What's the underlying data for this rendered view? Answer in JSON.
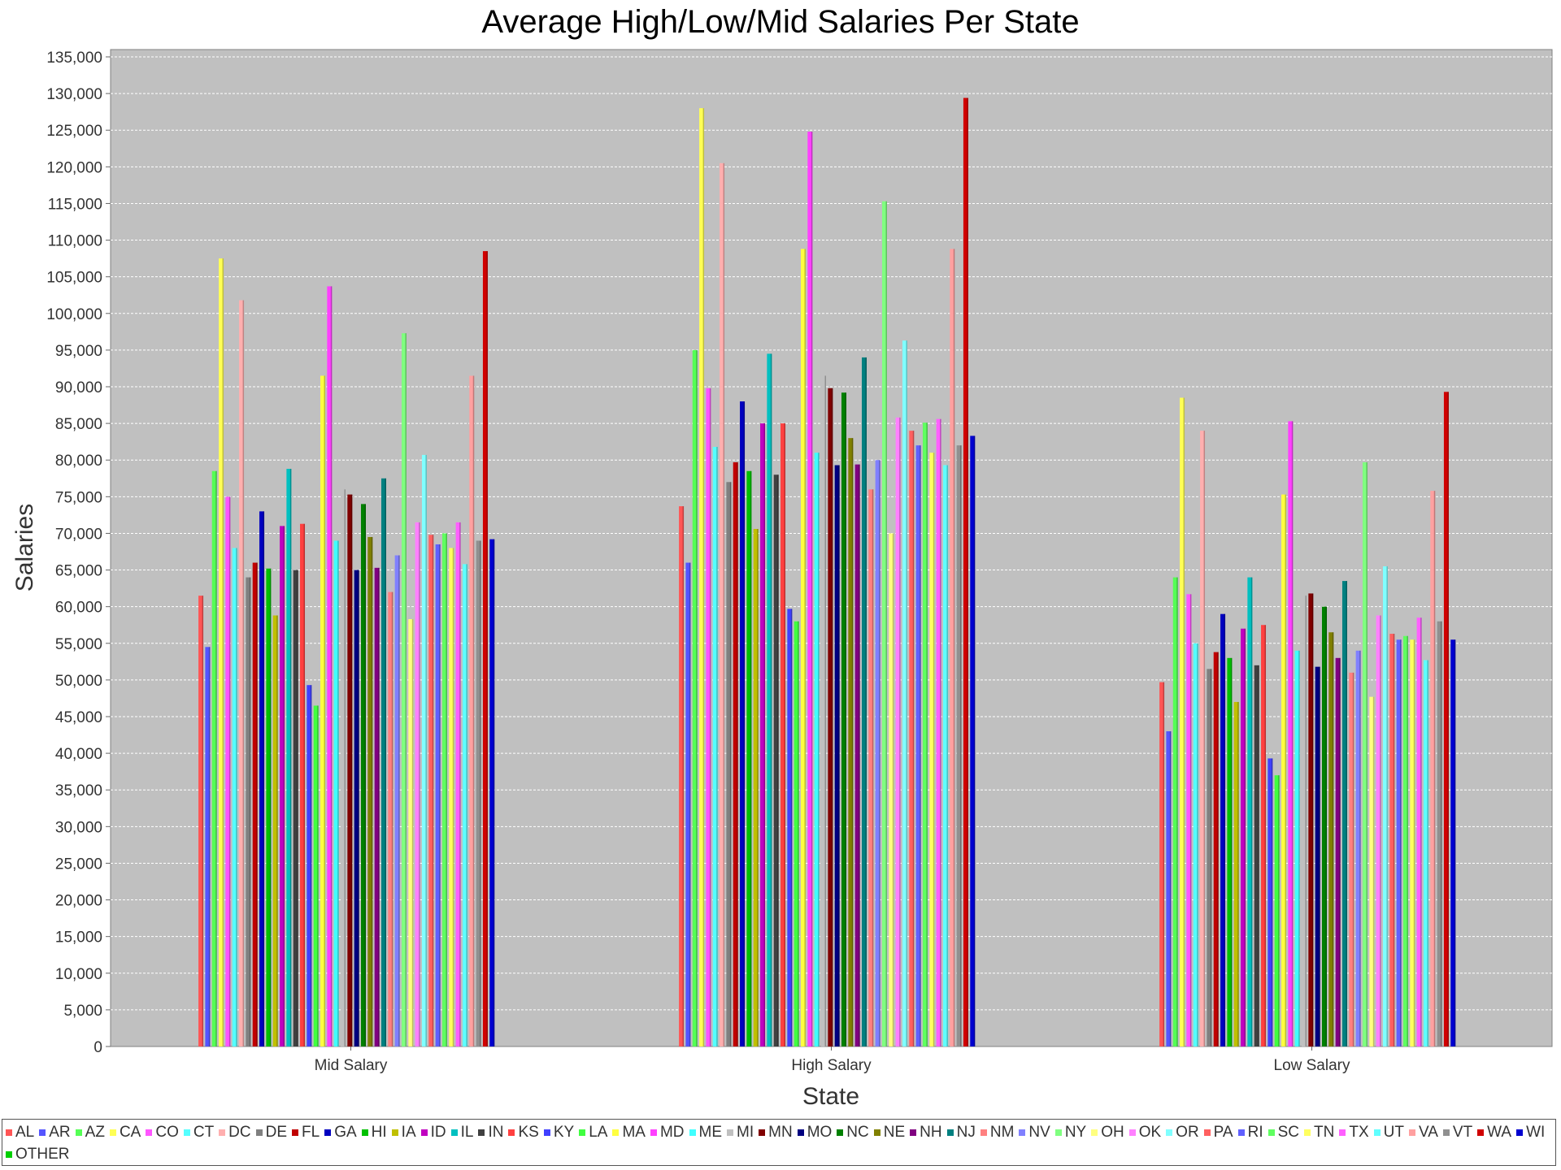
{
  "chart_data": {
    "type": "bar",
    "title": "Average High/Low/Mid Salaries Per State",
    "xlabel": "State",
    "ylabel": "Salaries",
    "ylim": [
      0,
      135000
    ],
    "y_tick_step": 5000,
    "grid": true,
    "legend_position": "bottom",
    "categories": [
      "Mid Salary",
      "High Salary",
      "Low Salary"
    ],
    "series": [
      {
        "name": "AL",
        "color": "#ff5555",
        "values": [
          61500,
          73700,
          49700
        ]
      },
      {
        "name": "AR",
        "color": "#5555ff",
        "values": [
          54500,
          66000,
          43000
        ]
      },
      {
        "name": "AZ",
        "color": "#55ff55",
        "values": [
          78500,
          95000,
          64000
        ]
      },
      {
        "name": "CA",
        "color": "#ffff55",
        "values": [
          107500,
          128000,
          88500
        ]
      },
      {
        "name": "CO",
        "color": "#ff55ff",
        "values": [
          75000,
          89800,
          61700
        ]
      },
      {
        "name": "CT",
        "color": "#55ffff",
        "values": [
          68000,
          81800,
          55000
        ]
      },
      {
        "name": "DC",
        "color": "#ffafaf",
        "values": [
          101800,
          120500,
          84000
        ]
      },
      {
        "name": "DE",
        "color": "#808080",
        "values": [
          64000,
          77000,
          51500
        ]
      },
      {
        "name": "FL",
        "color": "#c00000",
        "values": [
          66000,
          79700,
          53800
        ]
      },
      {
        "name": "GA",
        "color": "#0000c0",
        "values": [
          73000,
          88000,
          59000
        ]
      },
      {
        "name": "HI",
        "color": "#00c000",
        "values": [
          65200,
          78500,
          53000
        ]
      },
      {
        "name": "IA",
        "color": "#c0c000",
        "values": [
          58800,
          70600,
          47000
        ]
      },
      {
        "name": "ID",
        "color": "#c000c0",
        "values": [
          71000,
          85000,
          57000
        ]
      },
      {
        "name": "IL",
        "color": "#00c0c0",
        "values": [
          78800,
          94500,
          64000
        ]
      },
      {
        "name": "IN",
        "color": "#404040",
        "values": [
          65000,
          78000,
          52000
        ]
      },
      {
        "name": "KS",
        "color": "#ff4040",
        "values": [
          71300,
          85000,
          57500
        ]
      },
      {
        "name": "KY",
        "color": "#4040ff",
        "values": [
          49300,
          59700,
          39300
        ]
      },
      {
        "name": "LA",
        "color": "#40ff40",
        "values": [
          46500,
          58000,
          37000
        ]
      },
      {
        "name": "MA",
        "color": "#ffff40",
        "values": [
          91500,
          108800,
          75300
        ]
      },
      {
        "name": "MD",
        "color": "#ff40ff",
        "values": [
          103700,
          124800,
          85300
        ]
      },
      {
        "name": "ME",
        "color": "#40ffff",
        "values": [
          69000,
          81000,
          54000
        ]
      },
      {
        "name": "MI",
        "color": "#c0c0c0",
        "values": [
          76000,
          91500,
          61500
        ]
      },
      {
        "name": "MN",
        "color": "#800000",
        "values": [
          75300,
          89800,
          61800
        ]
      },
      {
        "name": "MO",
        "color": "#000080",
        "values": [
          65000,
          79300,
          51800
        ]
      },
      {
        "name": "NC",
        "color": "#008000",
        "values": [
          74000,
          89200,
          60000
        ]
      },
      {
        "name": "NE",
        "color": "#808000",
        "values": [
          69500,
          83000,
          56500
        ]
      },
      {
        "name": "NH",
        "color": "#800080",
        "values": [
          65300,
          79400,
          53000
        ]
      },
      {
        "name": "NJ",
        "color": "#008080",
        "values": [
          77500,
          94000,
          63500
        ]
      },
      {
        "name": "NM",
        "color": "#ff8080",
        "values": [
          62000,
          76000,
          51000
        ]
      },
      {
        "name": "NV",
        "color": "#8080ff",
        "values": [
          67000,
          80000,
          54000
        ]
      },
      {
        "name": "NY",
        "color": "#80ff80",
        "values": [
          97300,
          115300,
          79700
        ]
      },
      {
        "name": "OH",
        "color": "#ffff80",
        "values": [
          58300,
          70000,
          47700
        ]
      },
      {
        "name": "OK",
        "color": "#ff80ff",
        "values": [
          71500,
          85800,
          58800
        ]
      },
      {
        "name": "OR",
        "color": "#80ffff",
        "values": [
          80700,
          96300,
          65500
        ]
      },
      {
        "name": "PA",
        "color": "#ff6060",
        "values": [
          69800,
          84000,
          56300
        ]
      },
      {
        "name": "RI",
        "color": "#6060ff",
        "values": [
          68500,
          82000,
          55500
        ]
      },
      {
        "name": "SC",
        "color": "#60ff60",
        "values": [
          70000,
          85100,
          56000
        ]
      },
      {
        "name": "TN",
        "color": "#ffff60",
        "values": [
          68000,
          81000,
          55500
        ]
      },
      {
        "name": "TX",
        "color": "#ff60ff",
        "values": [
          71500,
          85600,
          58500
        ]
      },
      {
        "name": "UT",
        "color": "#60ffff",
        "values": [
          65800,
          79300,
          52700
        ]
      },
      {
        "name": "VA",
        "color": "#ffa0a0",
        "values": [
          91500,
          108800,
          75800
        ]
      },
      {
        "name": "VT",
        "color": "#909090",
        "values": [
          69000,
          82000,
          58000
        ]
      },
      {
        "name": "WA",
        "color": "#d00000",
        "values": [
          108500,
          129400,
          89300
        ]
      },
      {
        "name": "WI",
        "color": "#0000d0",
        "values": [
          69200,
          83300,
          55500
        ]
      },
      {
        "name": "OTHER",
        "color": "#00d000",
        "values": [
          0,
          0,
          0
        ]
      }
    ]
  }
}
